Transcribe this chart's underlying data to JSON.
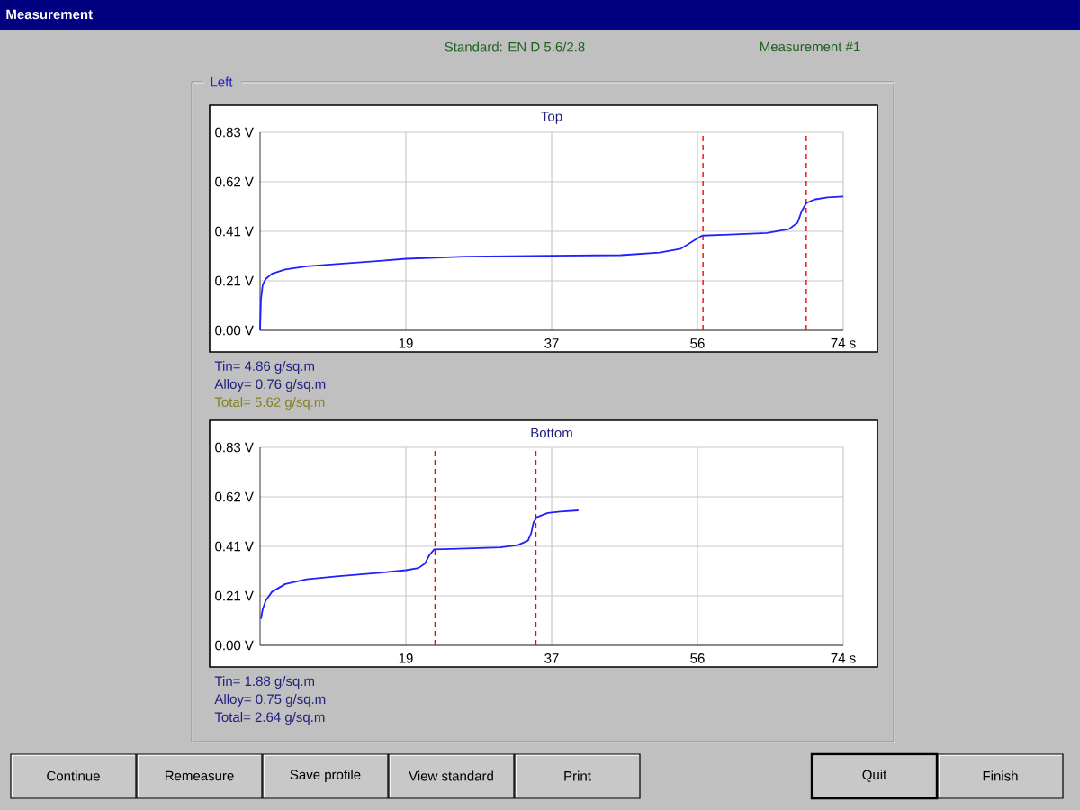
{
  "chart_data": [
    {
      "type": "line",
      "title": "Top",
      "x": [
        0,
        0.11,
        0.33,
        0.71,
        1.5,
        3.2,
        5.9,
        9.7,
        15.2,
        18.5,
        26.1,
        37.0,
        45.8,
        50.7,
        53.4,
        55.0,
        56.1,
        58.9,
        64.3,
        67.1,
        68.2,
        68.7,
        69.3,
        70.3,
        72.0,
        74
      ],
      "values": [
        0,
        0.13,
        0.19,
        0.215,
        0.237,
        0.255,
        0.268,
        0.278,
        0.291,
        0.3,
        0.309,
        0.313,
        0.315,
        0.326,
        0.342,
        0.375,
        0.397,
        0.4,
        0.408,
        0.424,
        0.451,
        0.497,
        0.533,
        0.548,
        0.557,
        0.561
      ],
      "color": "#2020ff",
      "xlim": [
        0,
        74
      ],
      "ylim": [
        0,
        0.83
      ],
      "xticks": [
        {
          "value": 18.5,
          "label": "19"
        },
        37,
        {
          "value": 55.5,
          "label": "56"
        },
        {
          "value": 74,
          "label": "74 s"
        }
      ],
      "yticks": [
        {
          "value": 0,
          "label": "0.00 V"
        },
        {
          "value": 0.2075,
          "label": "0.21 V"
        },
        {
          "value": 0.415,
          "label": "0.41 V"
        },
        {
          "value": 0.6225,
          "label": "0.62 V"
        },
        {
          "value": 0.83,
          "label": "0.83 V"
        }
      ],
      "grid": true,
      "marker": "none",
      "line_style": "solid",
      "ref_lines": [
        {
          "axis": "x",
          "value": 56.2,
          "color": "#ff0000",
          "line_style": "dashed"
        },
        {
          "axis": "x",
          "value": 69.3,
          "color": "#ff0000",
          "line_style": "dashed"
        }
      ],
      "annotations": [
        "Tin= 4.86 g/sq.m",
        "Alloy= 0.76 g/sq.m",
        "Total= 5.62 g/sq.m"
      ]
    },
    {
      "type": "line",
      "title": "Bottom",
      "x": [
        0.11,
        0.33,
        0.71,
        1.5,
        3.2,
        5.9,
        9.7,
        15.2,
        18.5,
        20.1,
        20.9,
        21.5,
        22.1,
        26.1,
        30.5,
        32.7,
        34.0,
        34.4,
        34.7,
        35.1,
        36.5,
        38.1,
        40.4
      ],
      "values": [
        0.111,
        0.151,
        0.187,
        0.224,
        0.257,
        0.277,
        0.289,
        0.304,
        0.315,
        0.324,
        0.342,
        0.379,
        0.402,
        0.406,
        0.411,
        0.42,
        0.439,
        0.47,
        0.515,
        0.537,
        0.555,
        0.561,
        0.566
      ],
      "color": "#2020ff",
      "xlim": [
        0,
        74
      ],
      "ylim": [
        0,
        0.83
      ],
      "xticks": [
        {
          "value": 18.5,
          "label": "19"
        },
        37,
        {
          "value": 55.5,
          "label": "56"
        },
        {
          "value": 74,
          "label": "74 s"
        }
      ],
      "yticks": [
        {
          "value": 0,
          "label": "0.00 V"
        },
        {
          "value": 0.2075,
          "label": "0.21 V"
        },
        {
          "value": 0.415,
          "label": "0.41 V"
        },
        {
          "value": 0.6225,
          "label": "0.62 V"
        },
        {
          "value": 0.83,
          "label": "0.83 V"
        }
      ],
      "grid": true,
      "marker": "none",
      "line_style": "solid",
      "ref_lines": [
        {
          "axis": "x",
          "value": 22.2,
          "color": "#ff0000",
          "line_style": "dashed"
        },
        {
          "axis": "x",
          "value": 35.0,
          "color": "#ff0000",
          "line_style": "dashed"
        }
      ],
      "annotations": [
        "Tin= 1.88 g/sq.m",
        "Alloy= 0.75 g/sq.m",
        "Total= 2.64 g/sq.m"
      ]
    },
    {
      "type": "other",
      "title": "Measurement",
      "annotations": [
        "Standard: EN D 5.6/2.8",
        "Measurement #1",
        "Left",
        "Continue",
        "Remeasure",
        "Save profile",
        "View standard",
        "Print",
        "Quit",
        "Finish"
      ]
    }
  ]
}
